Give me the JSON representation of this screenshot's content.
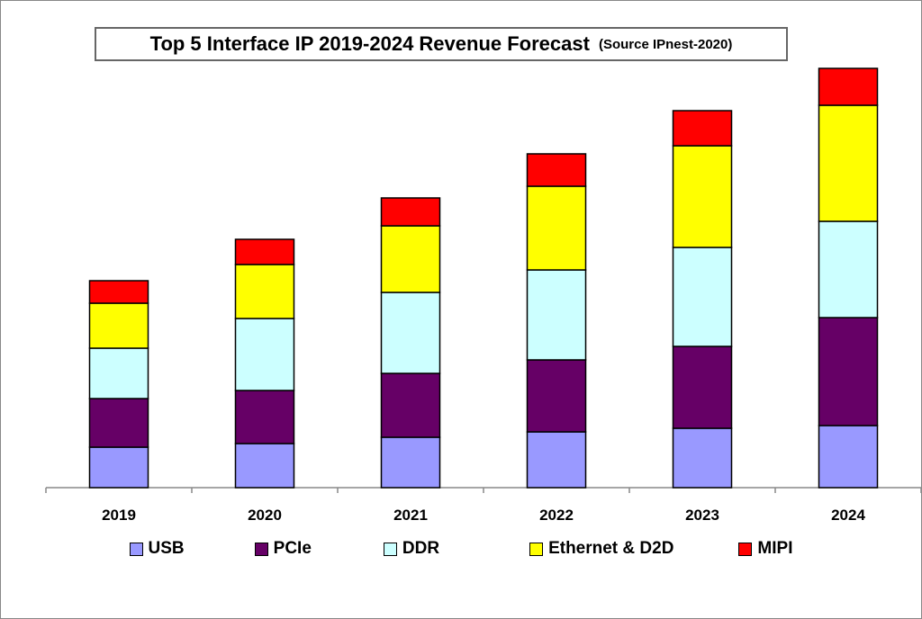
{
  "chart_data": {
    "type": "bar",
    "stacked": true,
    "title": "Top 5 Interface IP 2019-2024 Revenue Forecast",
    "subtitle": "(Source IPnest-2020)",
    "xlabel": "",
    "ylabel": "",
    "y_axis_shown": false,
    "ylim": [
      0,
      466
    ],
    "grid": false,
    "legend_position": "bottom",
    "categories": [
      "2019",
      "2020",
      "2021",
      "2022",
      "2023",
      "2024"
    ],
    "series": [
      {
        "name": "USB",
        "color": "#9999ff",
        "values": [
          45,
          49,
          56,
          62,
          66,
          69
        ]
      },
      {
        "name": "PCIe",
        "color": "#660066",
        "values": [
          54,
          59,
          71,
          80,
          91,
          120
        ]
      },
      {
        "name": "DDR",
        "color": "#ccffff",
        "values": [
          56,
          80,
          90,
          100,
          110,
          107
        ]
      },
      {
        "name": "Ethernet & D2D",
        "color": "#ffff00",
        "values": [
          50,
          60,
          74,
          93,
          113,
          129
        ]
      },
      {
        "name": "MIPI",
        "color": "#ff0000",
        "values": [
          25,
          28,
          31,
          36,
          39,
          41
        ]
      }
    ]
  }
}
